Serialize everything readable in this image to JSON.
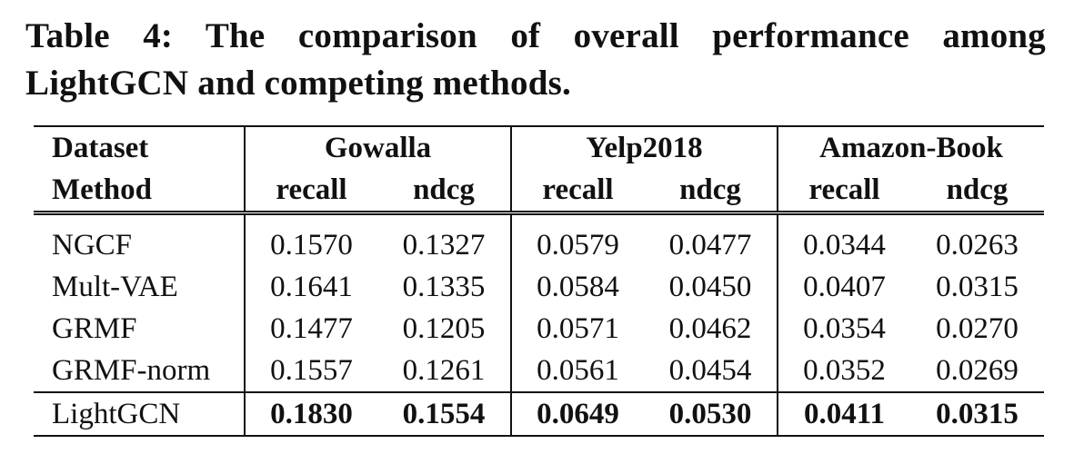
{
  "caption": "Table 4: The comparison of overall performance among LightGCN and competing methods.",
  "table": {
    "dataset_label": "Dataset",
    "method_label": "Method",
    "datasets": [
      "Gowalla",
      "Yelp2018",
      "Amazon-Book"
    ],
    "metrics": [
      "recall",
      "ndcg",
      "recall",
      "ndcg",
      "recall",
      "ndcg"
    ],
    "rows": [
      {
        "method": "NGCF",
        "values": [
          "0.1570",
          "0.1327",
          "0.0579",
          "0.0477",
          "0.0344",
          "0.0263"
        ]
      },
      {
        "method": "Mult-VAE",
        "values": [
          "0.1641",
          "0.1335",
          "0.0584",
          "0.0450",
          "0.0407",
          "0.0315"
        ]
      },
      {
        "method": "GRMF",
        "values": [
          "0.1477",
          "0.1205",
          "0.0571",
          "0.0462",
          "0.0354",
          "0.0270"
        ]
      },
      {
        "method": "GRMF-norm",
        "values": [
          "0.1557",
          "0.1261",
          "0.0561",
          "0.0454",
          "0.0352",
          "0.0269"
        ]
      },
      {
        "method": "LightGCN",
        "values": [
          "0.1830",
          "0.1554",
          "0.0649",
          "0.0530",
          "0.0411",
          "0.0315"
        ],
        "bold": true
      }
    ]
  }
}
